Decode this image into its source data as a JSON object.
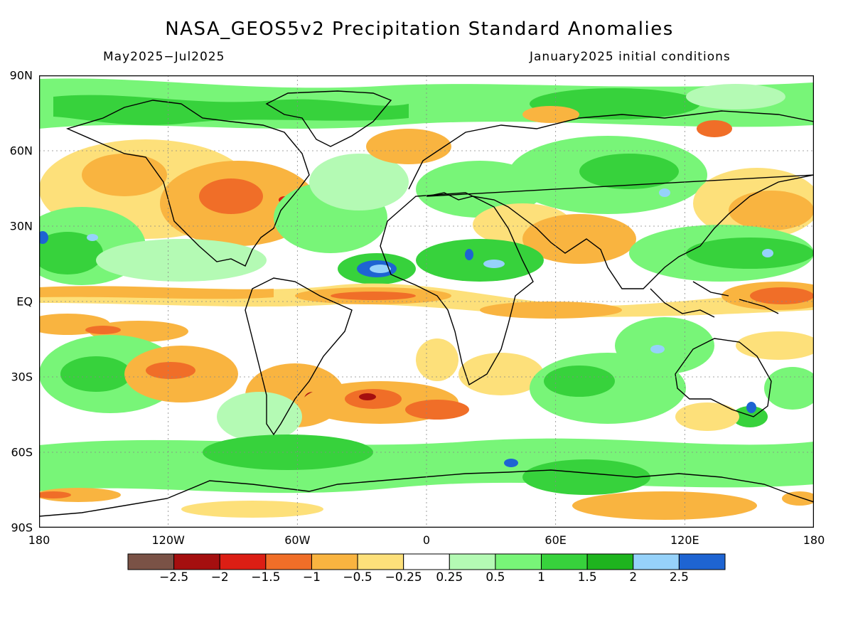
{
  "header": {
    "title": "NASA_GEOS5v2 Precipitation Standard Anomalies",
    "period": "May2025−Jul2025",
    "init": "January2025 initial conditions"
  },
  "axes": {
    "lat_labels": [
      "90N",
      "60N",
      "30N",
      "EQ",
      "30S",
      "60S",
      "90S"
    ],
    "lon_labels": [
      "180",
      "120W",
      "60W",
      "0",
      "60E",
      "120E",
      "180"
    ]
  },
  "colorbar": {
    "colors": [
      "#7a5246",
      "#a50f0f",
      "#dc1e14",
      "#f06e28",
      "#f9b440",
      "#fde07a",
      "#ffffff",
      "#b4fab4",
      "#78f578",
      "#37d23c",
      "#1eb41e",
      "#96d2fa",
      "#1e64d2"
    ],
    "tick_labels": [
      "−2.5",
      "−2",
      "−1.5",
      "−1",
      "−0.5",
      "−0.25",
      "0.25",
      "0.5",
      "1",
      "1.5",
      "2",
      "2.5"
    ]
  },
  "map": {
    "background": "#ffffff",
    "coastline_color": "#000000",
    "grid": true,
    "projection": "equirectangular"
  }
}
